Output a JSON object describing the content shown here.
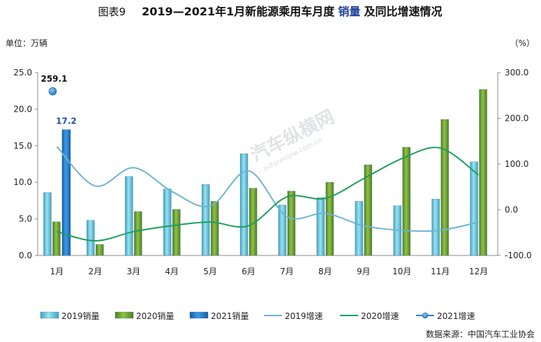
{
  "title_prefix": "图表9",
  "title_main": "2019—2021年1月新能源乘用车月度",
  "title_highlight": "销量",
  "title_suffix": "及同比增速情况",
  "left_unit": "单位：万辆",
  "right_unit": "（%）",
  "source": "数据来源：中国汽车工业协会",
  "watermark": "汽车纵横网",
  "watermark_url": "autoreview.com.cn",
  "colors": {
    "sales2019": "#5bc0d8",
    "sales2020": "#6a9a2e",
    "sales2021": "#1f78c8",
    "growth2019": "#6fb3d2",
    "growth2020": "#1aa05a",
    "growth2021": "#2a7fd0",
    "label2021": "#1f4fa8"
  },
  "chart_data": {
    "type": "bar",
    "categories": [
      "1月",
      "2月",
      "3月",
      "4月",
      "5月",
      "6月",
      "7月",
      "8月",
      "9月",
      "10月",
      "11月",
      "12月"
    ],
    "ylim": [
      0,
      25
    ],
    "yticks": [
      "0.0",
      "5.0",
      "10.0",
      "15.0",
      "20.0",
      "25.0"
    ],
    "y2lim": [
      -100,
      300
    ],
    "y2ticks": [
      "-100.0",
      "0.0",
      "100.0",
      "200.0",
      "300.0"
    ],
    "series": [
      {
        "name": "2019销量",
        "type": "bar",
        "axis": "left",
        "values": [
          8.6,
          4.8,
          10.8,
          9.1,
          9.7,
          13.9,
          6.9,
          7.9,
          7.4,
          6.8,
          7.7,
          12.8
        ]
      },
      {
        "name": "2020销量",
        "type": "bar",
        "axis": "left",
        "values": [
          4.6,
          1.5,
          6.0,
          6.3,
          7.4,
          9.2,
          8.8,
          10.0,
          12.4,
          14.8,
          18.6,
          22.7
        ]
      },
      {
        "name": "2021销量",
        "type": "bar",
        "axis": "left",
        "values": [
          17.2,
          null,
          null,
          null,
          null,
          null,
          null,
          null,
          null,
          null,
          null,
          null
        ]
      },
      {
        "name": "2019增速",
        "type": "line",
        "axis": "right",
        "values": [
          138,
          52,
          92,
          40,
          8,
          85,
          -15,
          -8,
          -35,
          -45,
          -45,
          -27
        ]
      },
      {
        "name": "2020增速",
        "type": "line",
        "axis": "right",
        "values": [
          -48,
          -68,
          -48,
          -35,
          -27,
          -35,
          28,
          25,
          68,
          112,
          135,
          76
        ]
      },
      {
        "name": "2021增速",
        "type": "point",
        "axis": "right",
        "values": [
          259.1,
          null,
          null,
          null,
          null,
          null,
          null,
          null,
          null,
          null,
          null,
          null
        ]
      }
    ],
    "data_labels": [
      {
        "series": "2021增速",
        "category": "1月",
        "text": "259.1"
      },
      {
        "series": "2021销量",
        "category": "1月",
        "text": "17.2"
      }
    ],
    "legend": [
      "2019销量",
      "2020销量",
      "2021销量",
      "2019增速",
      "2020增速",
      "2021增速"
    ],
    "legend_position": "bottom",
    "grid": false
  }
}
